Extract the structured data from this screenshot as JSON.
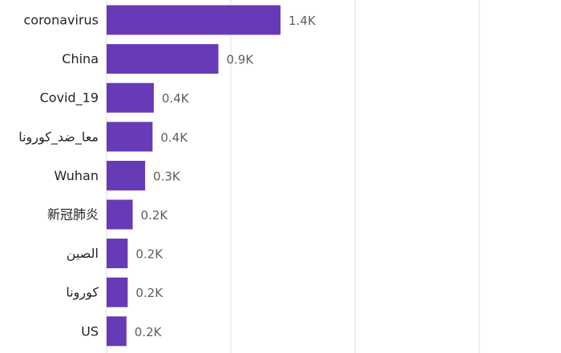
{
  "chart_data": {
    "type": "bar",
    "orientation": "horizontal",
    "categories": [
      "coronavirus",
      "China",
      "Covid_19",
      "معا_ضد_كورونا",
      "Wuhan",
      "新冠肺炎",
      "الصين",
      "كورونا",
      "US"
    ],
    "values": [
      1400,
      900,
      380,
      370,
      310,
      210,
      170,
      170,
      160
    ],
    "value_labels": [
      "1.4K",
      "0.9K",
      "0.4K",
      "0.4K",
      "0.3K",
      "0.2K",
      "0.2K",
      "0.2K",
      "0.2K"
    ],
    "xlim": [
      0,
      2000
    ],
    "gridlines": [
      0,
      1000,
      2000
    ],
    "grid": true,
    "legend": "none",
    "title": "",
    "xlabel": "",
    "ylabel": "",
    "bar_color": "#673ab7"
  }
}
